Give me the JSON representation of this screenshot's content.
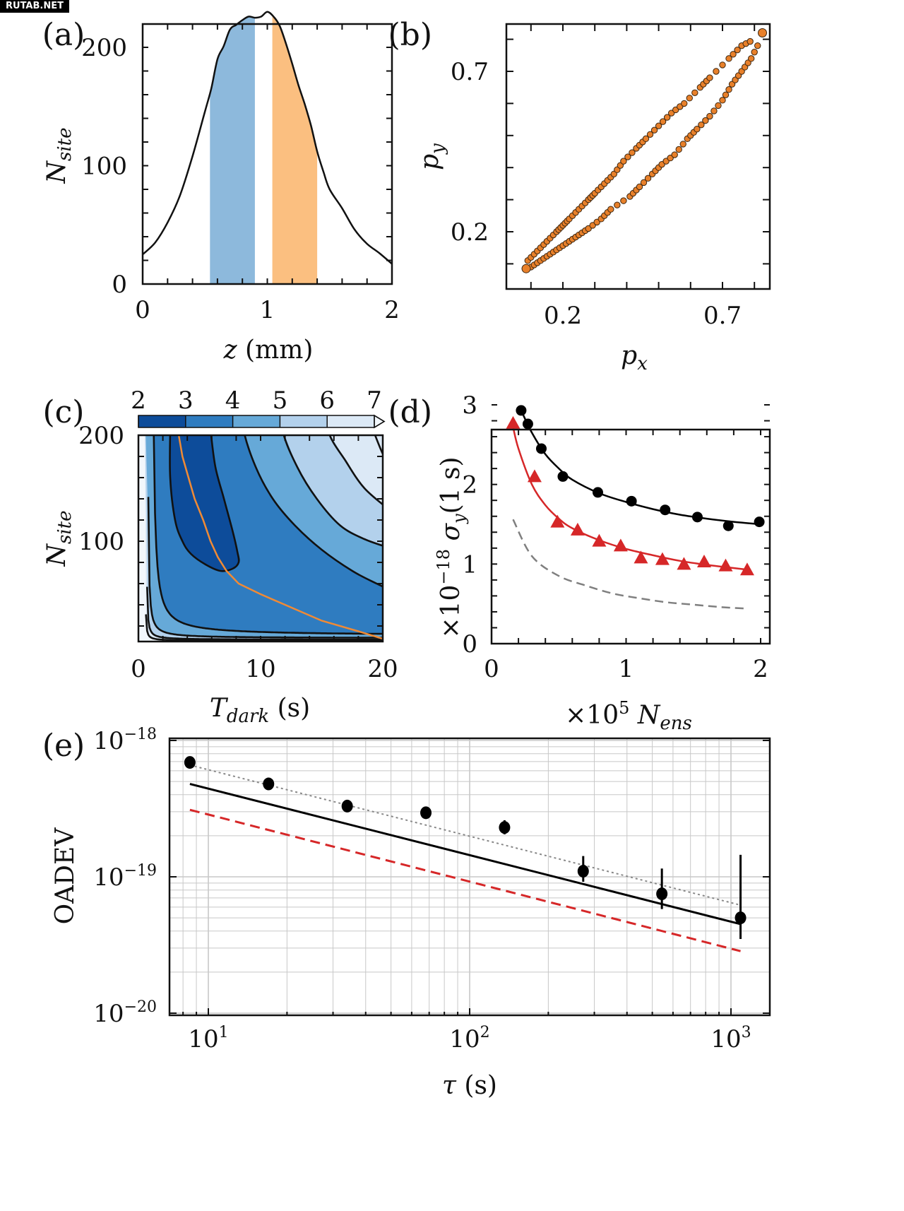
{
  "watermark": "RUTAB.NET",
  "chart_data": [
    {
      "panel": "(a)",
      "type": "area",
      "xlabel": "z (mm)",
      "ylabel": "N_site",
      "xlim": [
        0,
        2
      ],
      "ylim": [
        0,
        200
      ],
      "xticks": [
        "0",
        "1",
        "2"
      ],
      "yticks": [
        "0",
        "100",
        "200"
      ],
      "x": [
        0.0,
        0.1,
        0.2,
        0.3,
        0.4,
        0.5,
        0.55,
        0.6,
        0.65,
        0.7,
        0.75,
        0.8,
        0.85,
        0.9,
        0.95,
        1.0,
        1.05,
        1.1,
        1.15,
        1.2,
        1.25,
        1.3,
        1.35,
        1.4,
        1.45,
        1.5,
        1.6,
        1.7,
        1.8,
        1.9,
        2.0
      ],
      "y": [
        25,
        35,
        52,
        75,
        108,
        146,
        165,
        190,
        201,
        215,
        219,
        223,
        226,
        225,
        226,
        230,
        226,
        218,
        203,
        186,
        168,
        152,
        134,
        112,
        95,
        80,
        64,
        46,
        34,
        26,
        17
      ],
      "bands": [
        {
          "name": "blue-band",
          "x_start": 0.54,
          "x_end": 0.9,
          "color": "#8db9dc"
        },
        {
          "name": "orange-band",
          "x_start": 1.04,
          "x_end": 1.4,
          "color": "#fbbf80"
        }
      ],
      "line_color": "#111111"
    },
    {
      "panel": "(b)",
      "type": "scatter",
      "xlabel": "p_x",
      "ylabel": "p_y",
      "xlim": [
        0.0,
        0.88
      ],
      "ylim": [
        0.05,
        0.87
      ],
      "xticks": [
        "0.2",
        "0.7"
      ],
      "yticks": [
        "0.2",
        "0.7"
      ],
      "marker_color": "#e8802a",
      "upper_branch": [
        [
          0.09,
          0.11
        ],
        [
          0.12,
          0.14
        ],
        [
          0.15,
          0.17
        ],
        [
          0.18,
          0.2
        ],
        [
          0.2,
          0.22
        ],
        [
          0.22,
          0.24
        ],
        [
          0.25,
          0.27
        ],
        [
          0.28,
          0.3
        ],
        [
          0.3,
          0.32
        ],
        [
          0.33,
          0.35
        ],
        [
          0.36,
          0.38
        ],
        [
          0.39,
          0.42
        ],
        [
          0.43,
          0.46
        ],
        [
          0.46,
          0.49
        ],
        [
          0.5,
          0.53
        ],
        [
          0.54,
          0.57
        ],
        [
          0.58,
          0.6
        ],
        [
          0.63,
          0.65
        ],
        [
          0.66,
          0.68
        ],
        [
          0.72,
          0.74
        ],
        [
          0.76,
          0.78
        ],
        [
          0.8,
          0.8
        ]
      ],
      "lower_branch": [
        [
          0.1,
          0.09
        ],
        [
          0.13,
          0.11
        ],
        [
          0.16,
          0.13
        ],
        [
          0.19,
          0.15
        ],
        [
          0.22,
          0.17
        ],
        [
          0.25,
          0.19
        ],
        [
          0.28,
          0.21
        ],
        [
          0.32,
          0.24
        ],
        [
          0.35,
          0.27
        ],
        [
          0.41,
          0.31
        ],
        [
          0.44,
          0.34
        ],
        [
          0.48,
          0.38
        ],
        [
          0.51,
          0.41
        ],
        [
          0.55,
          0.44
        ],
        [
          0.59,
          0.49
        ],
        [
          0.62,
          0.52
        ],
        [
          0.66,
          0.56
        ],
        [
          0.7,
          0.61
        ],
        [
          0.73,
          0.66
        ],
        [
          0.76,
          0.7
        ],
        [
          0.79,
          0.74
        ],
        [
          0.82,
          0.8
        ]
      ]
    },
    {
      "panel": "(c)",
      "type": "heatmap",
      "xlabel": "T_dark (s)",
      "ylabel": "N_site",
      "xlim": [
        0,
        20
      ],
      "ylim": [
        5,
        200
      ],
      "xticks": [
        "0",
        "10",
        "20"
      ],
      "yticks": [
        "100",
        "200"
      ],
      "colorbar": {
        "ticks": [
          "2",
          "3",
          "4",
          "5",
          "6",
          "7"
        ],
        "levels": [
          2,
          3,
          4,
          5,
          6,
          7
        ],
        "colors": [
          "#0d4c9a",
          "#2f7cc0",
          "#66a9d8",
          "#b3d1ec",
          "#dce9f6"
        ],
        "extend": "max",
        "over_color": "#f2f7fc"
      },
      "optimum_line_color": "#f08a35",
      "optimum_line": [
        [
          3.3,
          200
        ],
        [
          3.6,
          180
        ],
        [
          4.1,
          160
        ],
        [
          4.6,
          140
        ],
        [
          5.3,
          120
        ],
        [
          5.9,
          100
        ],
        [
          6.5,
          85
        ],
        [
          7.2,
          72
        ],
        [
          8.2,
          60
        ],
        [
          10,
          50
        ],
        [
          12,
          40
        ],
        [
          15,
          25
        ],
        [
          18,
          15
        ],
        [
          20,
          8
        ]
      ]
    },
    {
      "panel": "(d)",
      "type": "scatter",
      "xlabel": "×10^5 N_ens",
      "ylabel": "×10^-18 σ_y(1 s)",
      "xlim": [
        0,
        2.05
      ],
      "ylim": [
        0,
        3.05
      ],
      "xticks": [
        "0",
        "1",
        "2"
      ],
      "yticks": [
        "0",
        "1",
        "2",
        "3"
      ],
      "series": [
        {
          "name": "black-circles",
          "marker": "circle",
          "color": "#000000",
          "x": [
            0.22,
            0.27,
            0.37,
            0.53,
            0.79,
            1.04,
            1.29,
            1.53,
            1.76,
            1.99
          ],
          "y": [
            2.93,
            2.76,
            2.45,
            2.1,
            1.9,
            1.79,
            1.68,
            1.59,
            1.48,
            1.53
          ],
          "fit": [
            [
              0.22,
              2.93
            ],
            [
              0.3,
              2.65
            ],
            [
              0.4,
              2.38
            ],
            [
              0.5,
              2.2
            ],
            [
              0.6,
              2.06
            ],
            [
              0.8,
              1.89
            ],
            [
              1.0,
              1.78
            ],
            [
              1.2,
              1.69
            ],
            [
              1.4,
              1.62
            ],
            [
              1.6,
              1.57
            ],
            [
              1.8,
              1.53
            ],
            [
              2.0,
              1.5
            ]
          ]
        },
        {
          "name": "red-triangles",
          "marker": "triangle",
          "color": "#d62728",
          "x": [
            0.16,
            0.32,
            0.49,
            0.64,
            0.8,
            0.96,
            1.11,
            1.27,
            1.43,
            1.58,
            1.74,
            1.9
          ],
          "y": [
            2.77,
            2.1,
            1.53,
            1.43,
            1.29,
            1.23,
            1.08,
            1.06,
            1.0,
            1.03,
            0.98,
            0.93
          ],
          "fit": [
            [
              0.16,
              2.72
            ],
            [
              0.2,
              2.45
            ],
            [
              0.3,
              2.0
            ],
            [
              0.4,
              1.74
            ],
            [
              0.5,
              1.57
            ],
            [
              0.6,
              1.45
            ],
            [
              0.8,
              1.3
            ],
            [
              1.0,
              1.19
            ],
            [
              1.2,
              1.11
            ],
            [
              1.4,
              1.04
            ],
            [
              1.6,
              0.99
            ],
            [
              1.8,
              0.95
            ],
            [
              1.9,
              0.93
            ]
          ]
        },
        {
          "name": "gray-dashed",
          "marker": "none",
          "color": "#7f7f7f",
          "style": "dashed",
          "x": [
            0.16,
            0.3,
            0.5,
            0.7,
            0.9,
            1.1,
            1.3,
            1.5,
            1.7,
            1.9
          ],
          "y": [
            1.56,
            1.1,
            0.85,
            0.73,
            0.63,
            0.57,
            0.52,
            0.49,
            0.46,
            0.44
          ]
        }
      ]
    },
    {
      "panel": "(e)",
      "type": "line",
      "xlabel": "τ (s)",
      "ylabel": "OADEV",
      "xscale": "log",
      "yscale": "log",
      "xlim": [
        6.5,
        1500
      ],
      "ylim": [
        1e-20,
        1.1e-18
      ],
      "xticks": [
        {
          "base": "10",
          "exp": "1"
        },
        {
          "base": "10",
          "exp": "2"
        },
        {
          "base": "10",
          "exp": "3"
        }
      ],
      "yticks": [
        {
          "base": "10",
          "exp": "−18"
        },
        {
          "base": "10",
          "exp": "−19"
        },
        {
          "base": "10",
          "exp": "−20"
        }
      ],
      "grid": true,
      "points": {
        "color": "#000000",
        "x": [
          8.5,
          17,
          34,
          68,
          136,
          272,
          544,
          1088
        ],
        "y": [
          6.9e-19,
          4.8e-19,
          3.3e-19,
          2.95e-19,
          2.3e-19,
          1.1e-19,
          7.5e-20,
          5e-20
        ],
        "err_low": [
          0,
          0,
          0,
          0,
          2.05e-19,
          9.2e-20,
          5.8e-20,
          3.5e-20
        ],
        "err_high": [
          0,
          0,
          0,
          0,
          2.6e-19,
          1.42e-19,
          1.15e-19,
          1.45e-19
        ]
      },
      "lines": [
        {
          "name": "dotted-fit",
          "color": "#888888",
          "style": "dotted",
          "x": [
            8.5,
            1088
          ],
          "y": [
            6.6e-19,
            6.2e-20
          ]
        },
        {
          "name": "solid-fit",
          "color": "#000000",
          "style": "solid",
          "x": [
            8.5,
            1088
          ],
          "y": [
            4.8e-19,
            4.5e-20
          ]
        },
        {
          "name": "red-dashed",
          "color": "#d62728",
          "style": "dashed",
          "x": [
            8.5,
            1088
          ],
          "y": [
            3.1e-19,
            2.85e-20
          ]
        }
      ]
    }
  ]
}
